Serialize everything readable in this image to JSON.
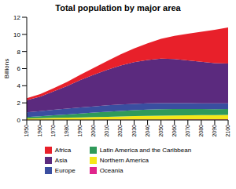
{
  "chart_data": {
    "type": "area",
    "title": "Total population by major area",
    "stacked": true,
    "x": [
      1950,
      1960,
      1970,
      1980,
      1990,
      2000,
      2010,
      2020,
      2030,
      2040,
      2050,
      2060,
      2070,
      2080,
      2090,
      2100
    ],
    "xlim": [
      1950,
      2100
    ],
    "xticks": [
      1950,
      1960,
      1970,
      1980,
      1990,
      2000,
      2010,
      2020,
      2030,
      2040,
      2050,
      2060,
      2070,
      2080,
      2090,
      2100
    ],
    "ylabel": "Billions",
    "ylim": [
      0,
      12
    ],
    "yticks": [
      0,
      2,
      4,
      6,
      8,
      10,
      12
    ],
    "grid": false,
    "legend": "bottom",
    "series": [
      {
        "name": "Oceania",
        "color": "#e0258c",
        "values": [
          0.013,
          0.016,
          0.02,
          0.023,
          0.027,
          0.031,
          0.037,
          0.042,
          0.047,
          0.051,
          0.055,
          0.058,
          0.061,
          0.063,
          0.065,
          0.066
        ]
      },
      {
        "name": "Northern America",
        "color": "#f5e71a",
        "values": [
          0.17,
          0.2,
          0.23,
          0.25,
          0.28,
          0.31,
          0.34,
          0.37,
          0.4,
          0.43,
          0.45,
          0.47,
          0.49,
          0.5,
          0.51,
          0.53
        ]
      },
      {
        "name": "Latin America and the Caribbean",
        "color": "#2f9a5a",
        "values": [
          0.17,
          0.22,
          0.29,
          0.36,
          0.44,
          0.52,
          0.59,
          0.65,
          0.7,
          0.73,
          0.75,
          0.75,
          0.73,
          0.71,
          0.69,
          0.69
        ]
      },
      {
        "name": "Europe",
        "color": "#3a4ea0",
        "values": [
          0.55,
          0.6,
          0.66,
          0.69,
          0.72,
          0.73,
          0.74,
          0.74,
          0.74,
          0.73,
          0.72,
          0.7,
          0.69,
          0.68,
          0.68,
          0.67
        ]
      },
      {
        "name": "Asia",
        "color": "#5b2a7e",
        "values": [
          1.4,
          1.7,
          2.14,
          2.63,
          3.2,
          3.7,
          4.16,
          4.56,
          4.87,
          5.07,
          5.2,
          5.15,
          5.0,
          4.85,
          4.7,
          4.65
        ]
      },
      {
        "name": "Africa",
        "color": "#e8202a",
        "values": [
          0.23,
          0.29,
          0.37,
          0.48,
          0.63,
          0.81,
          1.02,
          1.3,
          1.6,
          1.95,
          2.3,
          2.7,
          3.1,
          3.5,
          3.9,
          4.2
        ]
      }
    ]
  }
}
